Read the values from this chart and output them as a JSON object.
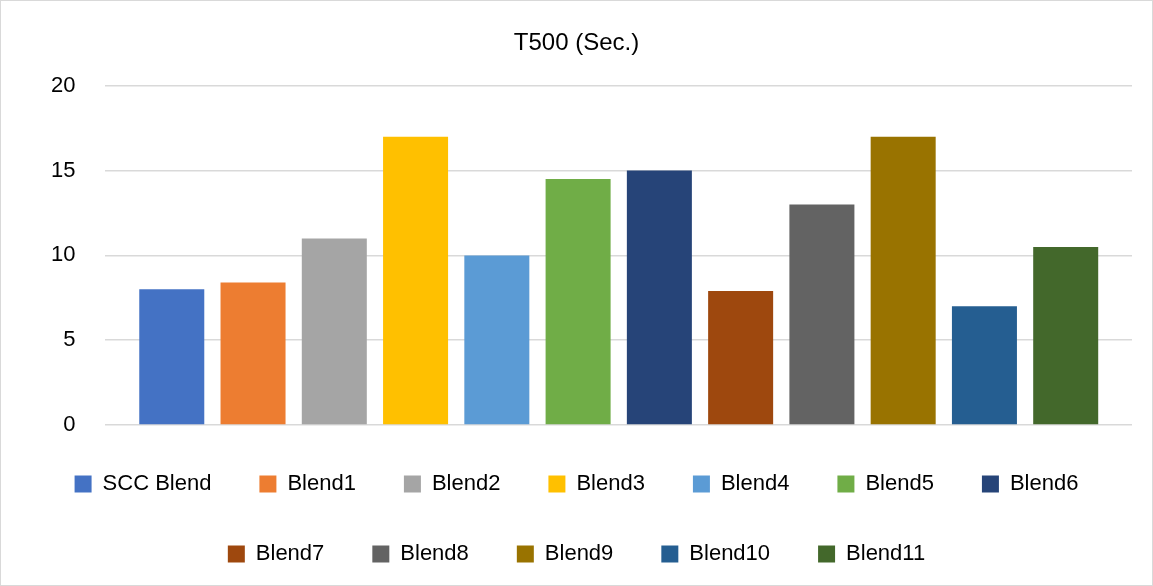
{
  "chart_data": {
    "type": "bar",
    "title": "T500 (Sec.)",
    "categories": [
      null
    ],
    "series": [
      {
        "name": "SCC Blend",
        "color": "#4472c4",
        "values": [
          8
        ]
      },
      {
        "name": "Blend1",
        "color": "#ed7d31",
        "values": [
          8.4
        ]
      },
      {
        "name": "Blend2",
        "color": "#a5a5a5",
        "values": [
          11
        ]
      },
      {
        "name": "Blend3",
        "color": "#ffc000",
        "values": [
          17
        ]
      },
      {
        "name": "Blend4",
        "color": "#5b9bd5",
        "values": [
          10
        ]
      },
      {
        "name": "Blend5",
        "color": "#70ad47",
        "values": [
          14.5
        ]
      },
      {
        "name": "Blend6",
        "color": "#264478",
        "values": [
          15
        ]
      },
      {
        "name": "Blend7",
        "color": "#9e480e",
        "values": [
          7.9
        ]
      },
      {
        "name": "Blend8",
        "color": "#636363",
        "values": [
          13
        ]
      },
      {
        "name": "Blend9",
        "color": "#997300",
        "values": [
          17
        ]
      },
      {
        "name": "Blend10",
        "color": "#255e91",
        "values": [
          7
        ]
      },
      {
        "name": "Blend11",
        "color": "#43682b",
        "values": [
          10.5
        ]
      }
    ],
    "ylim": [
      0,
      20
    ],
    "yticks": [
      0,
      5,
      10,
      15,
      20
    ],
    "grid": "y",
    "legend": "bottom",
    "tick_labels": "y"
  }
}
